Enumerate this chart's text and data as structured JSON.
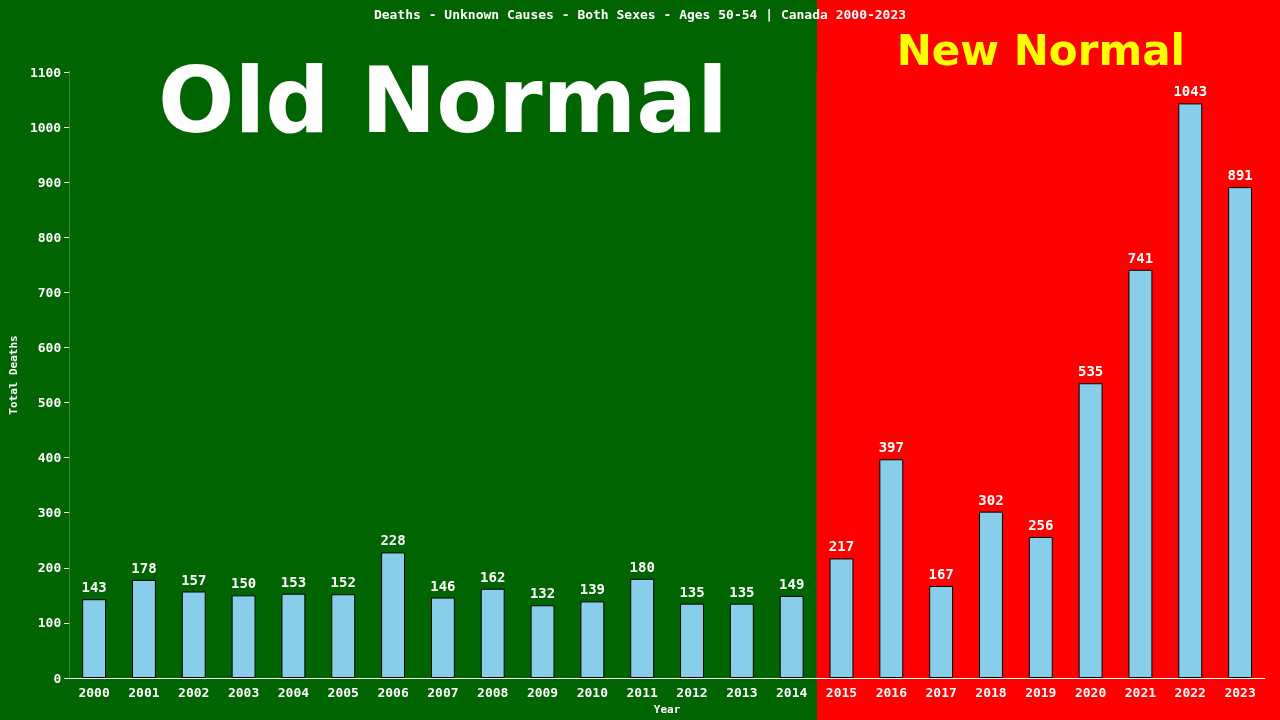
{
  "chart_data": {
    "type": "bar",
    "title": "Deaths - Unknown Causes - Both Sexes - Ages 50-54 | Canada 2000-2023",
    "xlabel": "Year",
    "ylabel": "Total Deaths",
    "categories": [
      "2000",
      "2001",
      "2002",
      "2003",
      "2004",
      "2005",
      "2006",
      "2007",
      "2008",
      "2009",
      "2010",
      "2011",
      "2012",
      "2013",
      "2014",
      "2015",
      "2016",
      "2017",
      "2018",
      "2019",
      "2020",
      "2021",
      "2022",
      "2023"
    ],
    "values": [
      143,
      178,
      157,
      150,
      153,
      152,
      228,
      146,
      162,
      132,
      139,
      180,
      135,
      135,
      149,
      217,
      397,
      167,
      302,
      256,
      535,
      741,
      1043,
      891
    ],
    "color": "#87ceeb",
    "ylim": [
      0,
      1100
    ],
    "yticks": [
      0,
      100,
      200,
      300,
      400,
      500,
      600,
      700,
      800,
      900,
      1000,
      1100
    ],
    "grid": false,
    "data_labels": true,
    "bands": [
      {
        "axis": "x",
        "from": "2000",
        "to": "2014",
        "label": "Old Normal",
        "color": "#006400"
      },
      {
        "axis": "x",
        "from": "2015",
        "to": "2023",
        "label": "New Normal",
        "color": "#ff0000"
      }
    ]
  }
}
